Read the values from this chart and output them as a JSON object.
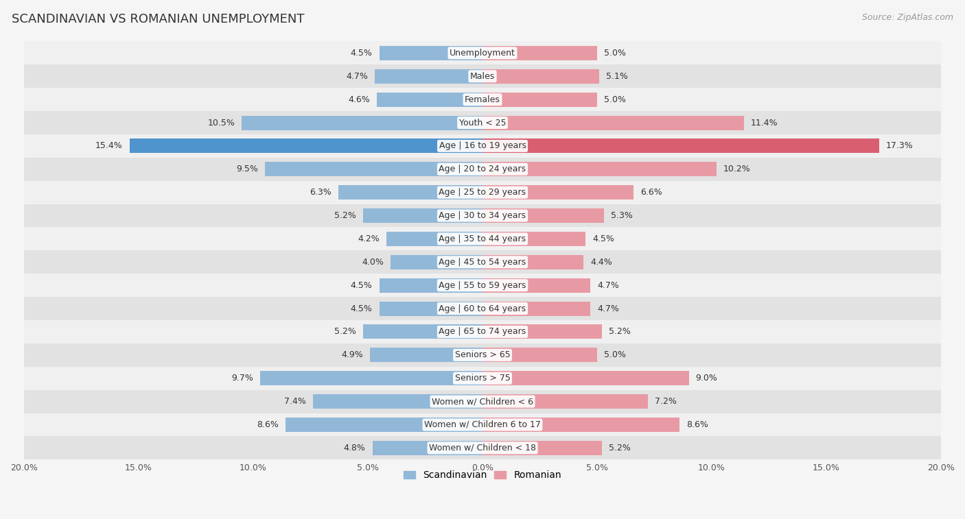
{
  "title": "SCANDINAVIAN VS ROMANIAN UNEMPLOYMENT",
  "source": "Source: ZipAtlas.com",
  "categories": [
    "Unemployment",
    "Males",
    "Females",
    "Youth < 25",
    "Age | 16 to 19 years",
    "Age | 20 to 24 years",
    "Age | 25 to 29 years",
    "Age | 30 to 34 years",
    "Age | 35 to 44 years",
    "Age | 45 to 54 years",
    "Age | 55 to 59 years",
    "Age | 60 to 64 years",
    "Age | 65 to 74 years",
    "Seniors > 65",
    "Seniors > 75",
    "Women w/ Children < 6",
    "Women w/ Children 6 to 17",
    "Women w/ Children < 18"
  ],
  "scandinavian": [
    4.5,
    4.7,
    4.6,
    10.5,
    15.4,
    9.5,
    6.3,
    5.2,
    4.2,
    4.0,
    4.5,
    4.5,
    5.2,
    4.9,
    9.7,
    7.4,
    8.6,
    4.8
  ],
  "romanian": [
    5.0,
    5.1,
    5.0,
    11.4,
    17.3,
    10.2,
    6.6,
    5.3,
    4.5,
    4.4,
    4.7,
    4.7,
    5.2,
    5.0,
    9.0,
    7.2,
    8.6,
    5.2
  ],
  "scand_color": "#92b8d8",
  "roman_color": "#e89aa4",
  "scand_color_highlight": "#4f94cc",
  "roman_color_highlight": "#d95f70",
  "bg_color": "#f5f5f5",
  "row_light_color": "#f0f0f0",
  "row_dark_color": "#e2e2e2",
  "axis_limit": 20.0,
  "bar_height": 0.62,
  "label_fontsize": 9.0,
  "title_fontsize": 13,
  "source_fontsize": 9,
  "value_fontsize": 9,
  "highlight_row": 4
}
